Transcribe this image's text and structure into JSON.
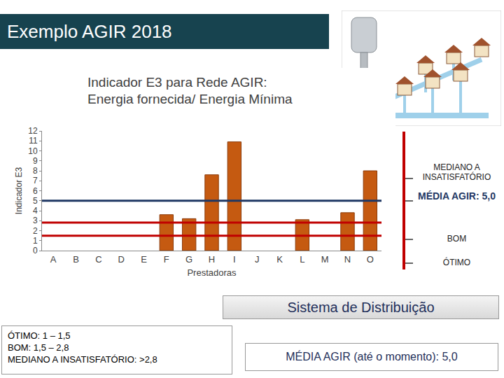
{
  "header": {
    "title": "Exemplo AGIR 2018"
  },
  "chart_data": {
    "type": "bar",
    "title": "Indicador E3 para Rede AGIR:\nEnergia fornecida/ Energia Mínima",
    "x_label": "Prestadoras",
    "y_label": "Indicador E3",
    "categories": [
      "A",
      "B",
      "C",
      "D",
      "E",
      "F",
      "G",
      "H",
      "I",
      "J",
      "K",
      "L",
      "M",
      "N",
      "O"
    ],
    "values": [
      null,
      null,
      null,
      null,
      null,
      3.6,
      3.2,
      7.6,
      10.9,
      null,
      null,
      3.1,
      null,
      3.8,
      8.0
    ],
    "color": "#c55a11",
    "ylim": [
      0,
      12
    ],
    "yticks": [
      0,
      1,
      2,
      3,
      4,
      5,
      6,
      7,
      8,
      9,
      10,
      11,
      12
    ],
    "grid": false,
    "reference_lines": [
      {
        "value": 5.0,
        "color": "#1f3864"
      },
      {
        "value": 2.8,
        "color": "#c00000"
      },
      {
        "value": 1.5,
        "color": "#c00000"
      }
    ]
  },
  "scale_labels": [
    "MEDIANO A INSATISFATÓRIO",
    "MÉDIA AGIR: 5,0",
    "BOM",
    "ÓTIMO"
  ],
  "system_label": "Sistema de Distribuição",
  "classification": [
    "ÓTIMO: 1 – 1,5",
    "BOM: 1,5 – 2,8",
    "MEDIANO A INSATISFATÓRIO: >2,8"
  ],
  "note": "MÉDIA AGIR (até o momento): 5,0"
}
